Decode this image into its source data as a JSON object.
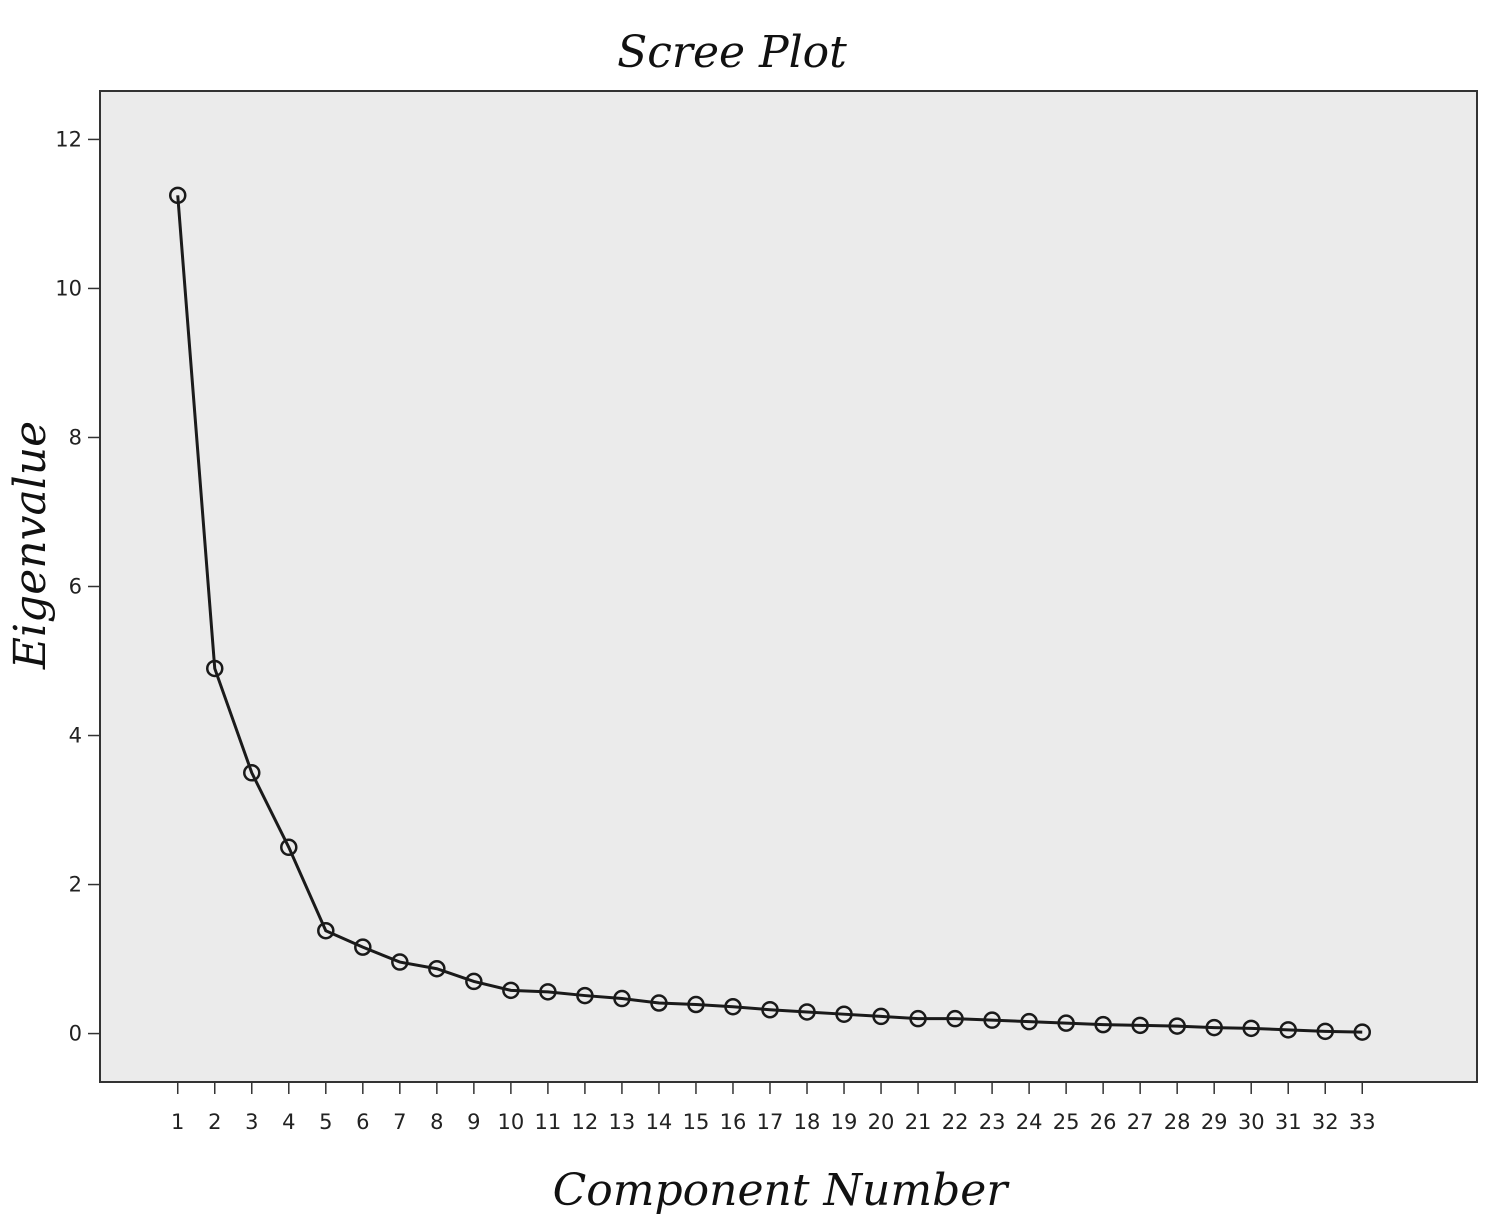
{
  "chart_data": {
    "type": "line",
    "title": "Scree Plot",
    "xlabel": "Component Number",
    "ylabel": "Eigenvalue",
    "x": [
      1,
      2,
      3,
      4,
      5,
      6,
      7,
      8,
      9,
      10,
      11,
      12,
      13,
      14,
      15,
      16,
      17,
      18,
      19,
      20,
      21,
      22,
      23,
      24,
      25,
      26,
      27,
      28,
      29,
      30,
      31,
      32,
      33
    ],
    "x_tick_labels": [
      "1",
      "2",
      "3",
      "4",
      "5",
      "6",
      "7",
      "8",
      "9",
      "10",
      "11",
      "12",
      "13",
      "14",
      "15",
      "16",
      "17",
      "18",
      "19",
      "20",
      "21",
      "22",
      "23",
      "24",
      "25",
      "26",
      "27",
      "28",
      "29",
      "30",
      "31",
      "32",
      "33"
    ],
    "y_ticks": [
      0,
      2,
      4,
      6,
      8,
      10,
      12
    ],
    "y_tick_labels": [
      "0",
      "2",
      "4",
      "6",
      "8",
      "10",
      "12"
    ],
    "series": [
      {
        "values": [
          11.25,
          4.9,
          3.5,
          2.5,
          1.38,
          1.16,
          0.96,
          0.87,
          0.7,
          0.58,
          0.56,
          0.51,
          0.47,
          0.41,
          0.39,
          0.36,
          0.32,
          0.29,
          0.26,
          0.23,
          0.2,
          0.2,
          0.18,
          0.16,
          0.14,
          0.12,
          0.11,
          0.1,
          0.08,
          0.07,
          0.05,
          0.03,
          0.02
        ],
        "marker": "circle"
      }
    ],
    "ylim": [
      -0.65,
      12.65
    ],
    "xlim": [
      -1.1,
      36.1
    ],
    "grid": false,
    "legend": "none",
    "colors": {
      "plot_background": "#ebebeb",
      "line": "#1a1a1a",
      "frame": "#333333"
    }
  }
}
